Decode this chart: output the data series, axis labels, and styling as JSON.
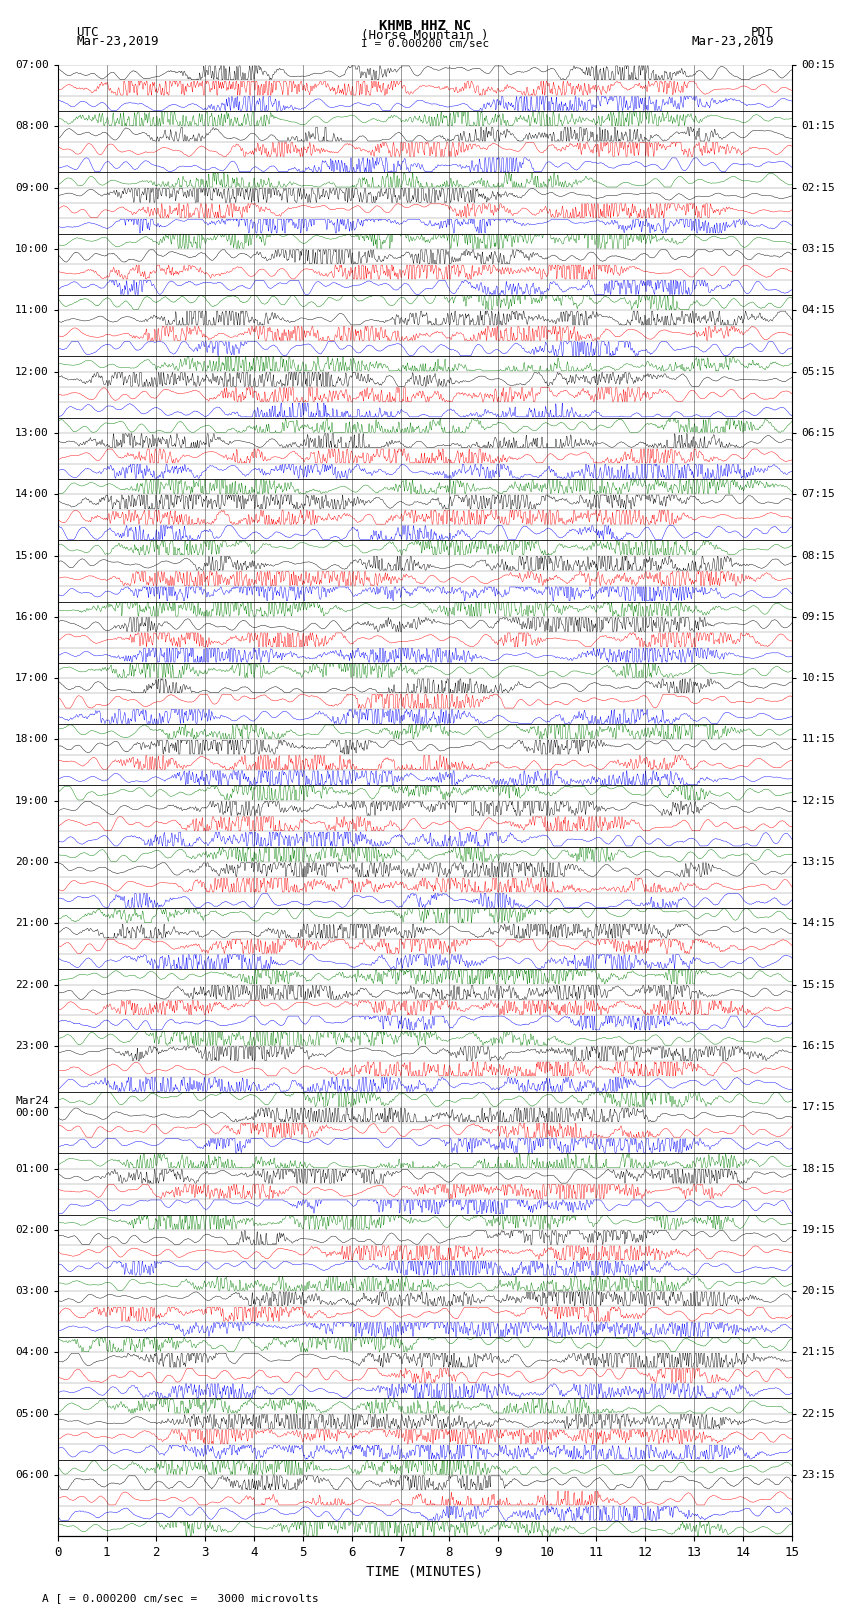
{
  "title_line1": "KHMB HHZ NC",
  "title_line2": "(Horse Mountain )",
  "scale_text": "I = 0.000200 cm/sec",
  "left_label_top": "UTC",
  "left_date": "Mar-23,2019",
  "right_label_top": "PDT",
  "right_date": "Mar-23,2019",
  "xlabel": "TIME (MINUTES)",
  "footer": "A [ = 0.000200 cm/sec =   3000 microvolts",
  "num_traces": 96,
  "minutes_per_trace": 15,
  "colors_cycle": [
    "black",
    "red",
    "blue",
    "green"
  ],
  "left_times": [
    "07:00",
    "",
    "",
    "",
    "08:00",
    "",
    "",
    "",
    "09:00",
    "",
    "",
    "",
    "10:00",
    "",
    "",
    "",
    "11:00",
    "",
    "",
    "",
    "12:00",
    "",
    "",
    "",
    "13:00",
    "",
    "",
    "",
    "14:00",
    "",
    "",
    "",
    "15:00",
    "",
    "",
    "",
    "16:00",
    "",
    "",
    "",
    "17:00",
    "",
    "",
    "",
    "18:00",
    "",
    "",
    "",
    "19:00",
    "",
    "",
    "",
    "20:00",
    "",
    "",
    "",
    "21:00",
    "",
    "",
    "",
    "22:00",
    "",
    "",
    "",
    "23:00",
    "",
    "",
    "",
    "Mar24\n00:00",
    "",
    "",
    "",
    "01:00",
    "",
    "",
    "",
    "02:00",
    "",
    "",
    "",
    "03:00",
    "",
    "",
    "",
    "04:00",
    "",
    "",
    "",
    "05:00",
    "",
    "",
    "",
    "06:00",
    "",
    "",
    ""
  ],
  "right_times": [
    "00:15",
    "",
    "",
    "",
    "01:15",
    "",
    "",
    "",
    "02:15",
    "",
    "",
    "",
    "03:15",
    "",
    "",
    "",
    "04:15",
    "",
    "",
    "",
    "05:15",
    "",
    "",
    "",
    "06:15",
    "",
    "",
    "",
    "07:15",
    "",
    "",
    "",
    "08:15",
    "",
    "",
    "",
    "09:15",
    "",
    "",
    "",
    "10:15",
    "",
    "",
    "",
    "11:15",
    "",
    "",
    "",
    "12:15",
    "",
    "",
    "",
    "13:15",
    "",
    "",
    "",
    "14:15",
    "",
    "",
    "",
    "15:15",
    "",
    "",
    "",
    "16:15",
    "",
    "",
    "",
    "17:15",
    "",
    "",
    "",
    "18:15",
    "",
    "",
    "",
    "19:15",
    "",
    "",
    "",
    "20:15",
    "",
    "",
    "",
    "21:15",
    "",
    "",
    "",
    "22:15",
    "",
    "",
    "",
    "23:15",
    "",
    "",
    ""
  ],
  "fig_width": 8.5,
  "fig_height": 16.13,
  "bg_color": "white",
  "noise_seed": 42,
  "grid_color": "black",
  "x_ticks": [
    0,
    1,
    2,
    3,
    4,
    5,
    6,
    7,
    8,
    9,
    10,
    11,
    12,
    13,
    14,
    15
  ],
  "samples": 4500,
  "trace_amp": 0.45,
  "lw": 0.3
}
